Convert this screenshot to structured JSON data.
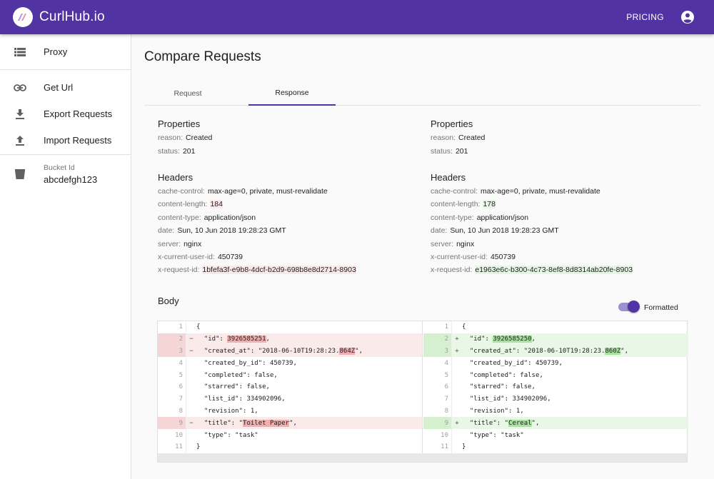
{
  "appbar": {
    "brand": "CurlHub.io",
    "pricing_label": "PRICING",
    "colors": {
      "primary": "#5133a3"
    }
  },
  "sidebar": {
    "items": [
      {
        "label": "Proxy",
        "icon": "list-icon"
      },
      {
        "label": "Get Url",
        "icon": "link-icon"
      },
      {
        "label": "Export Requests",
        "icon": "download-icon"
      },
      {
        "label": "Import Requests",
        "icon": "upload-icon"
      }
    ],
    "bucket": {
      "caption": "Bucket Id",
      "value": "abcdefgh123",
      "icon": "bucket-icon"
    }
  },
  "main": {
    "title": "Compare Requests",
    "tabs": [
      {
        "label": "Request"
      },
      {
        "label": "Response",
        "active": true
      }
    ],
    "left": {
      "properties_title": "Properties",
      "properties": [
        {
          "key": "reason:",
          "value": "Created"
        },
        {
          "key": "status:",
          "value": "201"
        }
      ],
      "headers_title": "Headers",
      "headers": [
        {
          "key": "cache-control:",
          "value": "max-age=0, private, must-revalidate"
        },
        {
          "key": "content-length:",
          "value": "184",
          "changed": true
        },
        {
          "key": "content-type:",
          "value": "application/json"
        },
        {
          "key": "date:",
          "value": "Sun, 10 Jun 2018 19:28:23 GMT"
        },
        {
          "key": "server:",
          "value": "nginx"
        },
        {
          "key": "x-current-user-id:",
          "value": "450739"
        },
        {
          "key": "x-request-id:",
          "value": "1bfefa3f-e9b8-4dcf-b2d9-698b8e8d2714-8903",
          "changed": true
        }
      ]
    },
    "right": {
      "properties_title": "Properties",
      "properties": [
        {
          "key": "reason:",
          "value": "Created"
        },
        {
          "key": "status:",
          "value": "201"
        }
      ],
      "headers_title": "Headers",
      "headers": [
        {
          "key": "cache-control:",
          "value": "max-age=0, private, must-revalidate"
        },
        {
          "key": "content-length:",
          "value": "178",
          "changed": true
        },
        {
          "key": "content-type:",
          "value": "application/json"
        },
        {
          "key": "date:",
          "value": "Sun, 10 Jun 2018 19:28:23 GMT"
        },
        {
          "key": "server:",
          "value": "nginx"
        },
        {
          "key": "x-current-user-id:",
          "value": "450739"
        },
        {
          "key": "x-request-id:",
          "value": "e1963e6c-b300-4c73-8ef8-8d8314ab20fe-8903",
          "changed": true
        }
      ]
    },
    "body": {
      "title": "Body",
      "formatted_label": "Formatted",
      "formatted_on": true,
      "left_lines": [
        {
          "n": "1",
          "m": "",
          "parts": [
            [
              "{",
              ""
            ]
          ]
        },
        {
          "n": "2",
          "m": "−",
          "type": "del",
          "parts": [
            [
              "  \"id\": ",
              ""
            ],
            [
              "3926585251",
              "hl"
            ],
            [
              ",",
              ""
            ]
          ]
        },
        {
          "n": "3",
          "m": "−",
          "type": "del",
          "parts": [
            [
              "  \"created_at\": \"2018-06-10T19:28:23.",
              ""
            ],
            [
              "864Z",
              "hl"
            ],
            [
              "\",",
              ""
            ]
          ]
        },
        {
          "n": "4",
          "m": "",
          "parts": [
            [
              "  \"created_by_id\": 450739,",
              ""
            ]
          ]
        },
        {
          "n": "5",
          "m": "",
          "parts": [
            [
              "  \"completed\": false,",
              ""
            ]
          ]
        },
        {
          "n": "6",
          "m": "",
          "parts": [
            [
              "  \"starred\": false,",
              ""
            ]
          ]
        },
        {
          "n": "7",
          "m": "",
          "parts": [
            [
              "  \"list_id\": 334902096,",
              ""
            ]
          ]
        },
        {
          "n": "8",
          "m": "",
          "parts": [
            [
              "  \"revision\": 1,",
              ""
            ]
          ]
        },
        {
          "n": "9",
          "m": "−",
          "type": "del",
          "parts": [
            [
              "  \"title\": \"",
              ""
            ],
            [
              "Toilet Paper",
              "hl"
            ],
            [
              "\",",
              ""
            ]
          ]
        },
        {
          "n": "10",
          "m": "",
          "parts": [
            [
              "  \"type\": \"task\"",
              ""
            ]
          ]
        },
        {
          "n": "11",
          "m": "",
          "parts": [
            [
              "}",
              ""
            ]
          ]
        }
      ],
      "right_lines": [
        {
          "n": "1",
          "m": "",
          "parts": [
            [
              "{",
              ""
            ]
          ]
        },
        {
          "n": "2",
          "m": "+",
          "type": "add",
          "parts": [
            [
              "  \"id\": ",
              ""
            ],
            [
              "3926585250",
              "hl"
            ],
            [
              ",",
              ""
            ]
          ]
        },
        {
          "n": "3",
          "m": "+",
          "type": "add",
          "parts": [
            [
              "  \"created_at\": \"2018-06-10T19:28:23.",
              ""
            ],
            [
              "860Z",
              "hl"
            ],
            [
              "\",",
              ""
            ]
          ]
        },
        {
          "n": "4",
          "m": "",
          "parts": [
            [
              "  \"created_by_id\": 450739,",
              ""
            ]
          ]
        },
        {
          "n": "5",
          "m": "",
          "parts": [
            [
              "  \"completed\": false,",
              ""
            ]
          ]
        },
        {
          "n": "6",
          "m": "",
          "parts": [
            [
              "  \"starred\": false,",
              ""
            ]
          ]
        },
        {
          "n": "7",
          "m": "",
          "parts": [
            [
              "  \"list_id\": 334902096,",
              ""
            ]
          ]
        },
        {
          "n": "8",
          "m": "",
          "parts": [
            [
              "  \"revision\": 1,",
              ""
            ]
          ]
        },
        {
          "n": "9",
          "m": "+",
          "type": "add",
          "parts": [
            [
              "  \"title\": \"",
              ""
            ],
            [
              "Cereal",
              "hl"
            ],
            [
              "\",",
              ""
            ]
          ]
        },
        {
          "n": "10",
          "m": "",
          "parts": [
            [
              "  \"type\": \"task\"",
              ""
            ]
          ]
        },
        {
          "n": "11",
          "m": "",
          "parts": [
            [
              "}",
              ""
            ]
          ]
        }
      ]
    }
  }
}
